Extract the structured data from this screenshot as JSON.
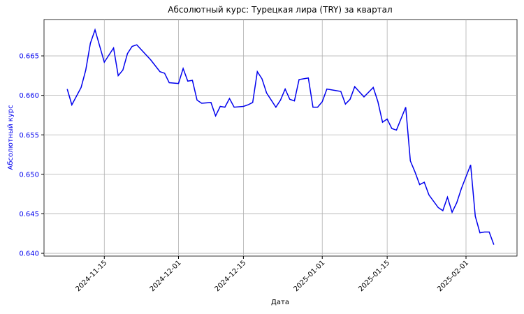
{
  "chart_data": {
    "type": "line",
    "title": "Абсолютный курс: Турецкая лира (TRY) за квартал",
    "x_label": "Дата",
    "y_label": "Абсолютный курс",
    "x": [
      "2024-11-07",
      "2024-11-08",
      "2024-11-10",
      "2024-11-11",
      "2024-11-12",
      "2024-11-13",
      "2024-11-15",
      "2024-11-17",
      "2024-11-18",
      "2024-11-19",
      "2024-11-20",
      "2024-11-21",
      "2024-11-22",
      "2024-11-25",
      "2024-11-27",
      "2024-11-28",
      "2024-11-29",
      "2024-12-01",
      "2024-12-02",
      "2024-12-03",
      "2024-12-04",
      "2024-12-05",
      "2024-12-06",
      "2024-12-08",
      "2024-12-09",
      "2024-12-10",
      "2024-12-11",
      "2024-12-12",
      "2024-12-13",
      "2024-12-15",
      "2024-12-16",
      "2024-12-17",
      "2024-12-18",
      "2024-12-19",
      "2024-12-20",
      "2024-12-22",
      "2024-12-23",
      "2024-12-24",
      "2024-12-25",
      "2024-12-26",
      "2024-12-27",
      "2024-12-29",
      "2024-12-30",
      "2024-12-31",
      "2025-01-01",
      "2025-01-02",
      "2025-01-05",
      "2025-01-06",
      "2025-01-07",
      "2025-01-08",
      "2025-01-10",
      "2025-01-12",
      "2025-01-13",
      "2025-01-14",
      "2025-01-15",
      "2025-01-16",
      "2025-01-17",
      "2025-01-19",
      "2025-01-20",
      "2025-01-21",
      "2025-01-22",
      "2025-01-23",
      "2025-01-24",
      "2025-01-26",
      "2025-01-27",
      "2025-01-28",
      "2025-01-29",
      "2025-01-30",
      "2025-01-31",
      "2025-02-02",
      "2025-02-03",
      "2025-02-04",
      "2025-02-05",
      "2025-02-06",
      "2025-02-07"
    ],
    "series": [
      {
        "name": "TRY",
        "color": "#0000ee",
        "values": [
          0.6608,
          0.6588,
          0.661,
          0.6632,
          0.6666,
          0.6683,
          0.6642,
          0.666,
          0.6625,
          0.6632,
          0.6653,
          0.6662,
          0.6664,
          0.6645,
          0.663,
          0.6628,
          0.6616,
          0.6615,
          0.6634,
          0.6618,
          0.6619,
          0.6594,
          0.659,
          0.6591,
          0.6574,
          0.6586,
          0.6585,
          0.6596,
          0.6585,
          0.6586,
          0.6588,
          0.6591,
          0.663,
          0.6621,
          0.6603,
          0.6585,
          0.6594,
          0.6608,
          0.6595,
          0.6593,
          0.662,
          0.6622,
          0.6585,
          0.6585,
          0.6592,
          0.6608,
          0.6605,
          0.6589,
          0.6595,
          0.6611,
          0.6598,
          0.661,
          0.6592,
          0.6566,
          0.657,
          0.6558,
          0.6556,
          0.6585,
          0.6517,
          0.6503,
          0.6487,
          0.649,
          0.6474,
          0.6458,
          0.6454,
          0.6471,
          0.6452,
          0.6464,
          0.6482,
          0.6512,
          0.6447,
          0.6426,
          0.6427,
          0.6427,
          0.6411
        ]
      }
    ],
    "xlim": [
      "2024-11-02",
      "2025-02-12"
    ],
    "xticks": [
      "2024-11-15",
      "2024-12-01",
      "2024-12-15",
      "2025-01-01",
      "2025-01-15",
      "2025-02-01"
    ],
    "ylim": [
      0.63965,
      0.6696
    ],
    "yticks": [
      {
        "value": 0.64,
        "label": "0.640"
      },
      0.645,
      {
        "value": 0.65,
        "label": "0.650"
      },
      0.655,
      {
        "value": 0.66,
        "label": "0.660"
      },
      0.665
    ],
    "grid": true,
    "y_axis_color": "#0000ee"
  }
}
